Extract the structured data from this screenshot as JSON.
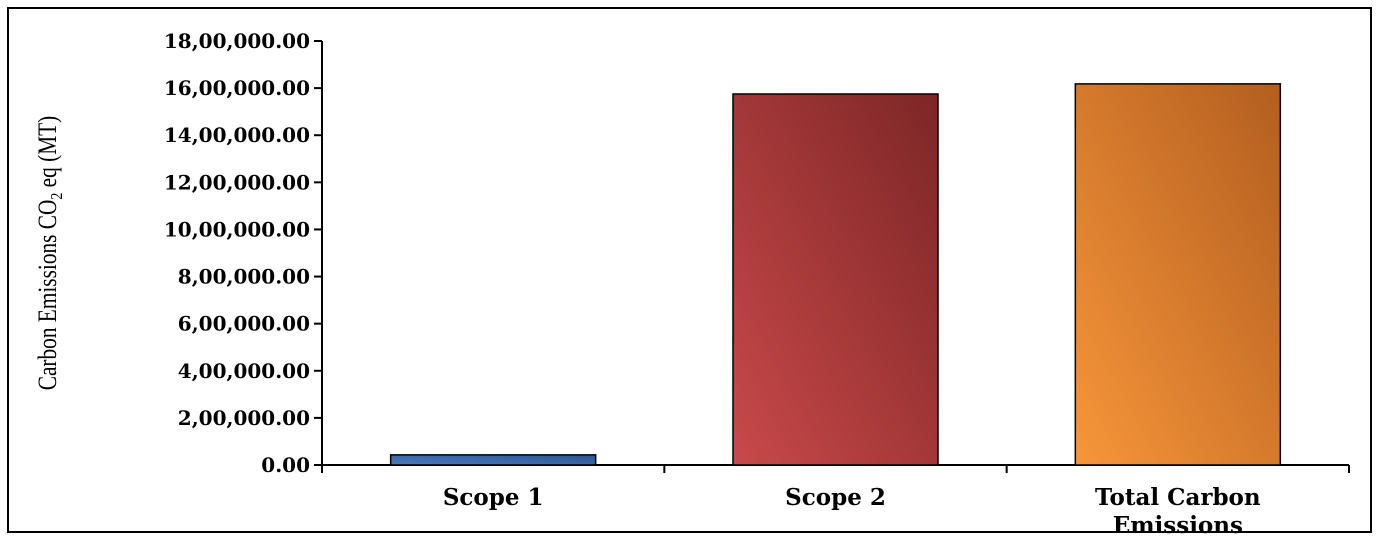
{
  "chart_data": {
    "type": "bar",
    "categories": [
      "Scope 1",
      "Scope 2",
      "Total Carbon Emissions"
    ],
    "category_lines": [
      [
        "Scope 1"
      ],
      [
        "Scope 2"
      ],
      [
        "Total Carbon",
        "Emissions"
      ]
    ],
    "values": [
      43000,
      1575000,
      1618000
    ],
    "ylabel": "Carbon Emissions CO2 eq (MT)",
    "ylabel_parts": [
      "Carbon Emissions CO",
      "2",
      " eq (MT)"
    ],
    "ylim": [
      0,
      1800000
    ],
    "y_ticks": [
      0,
      200000,
      400000,
      600000,
      800000,
      1000000,
      1200000,
      1400000,
      1600000,
      1800000
    ],
    "y_tick_labels": [
      "0.00",
      "2,00,000.00",
      "4,00,000.00",
      "6,00,000.00",
      "8,00,000.00",
      "10,00,000.00",
      "12,00,000.00",
      "14,00,000.00",
      "16,00,000.00",
      "18,00,000.00"
    ],
    "grid": false,
    "legend": "none",
    "bar_colors": [
      {
        "from": "#4a7cc0",
        "to": "#2b5592"
      },
      {
        "from": "#c9494a",
        "to": "#7d2626"
      },
      {
        "from": "#f7963a",
        "to": "#b35e20"
      }
    ]
  }
}
